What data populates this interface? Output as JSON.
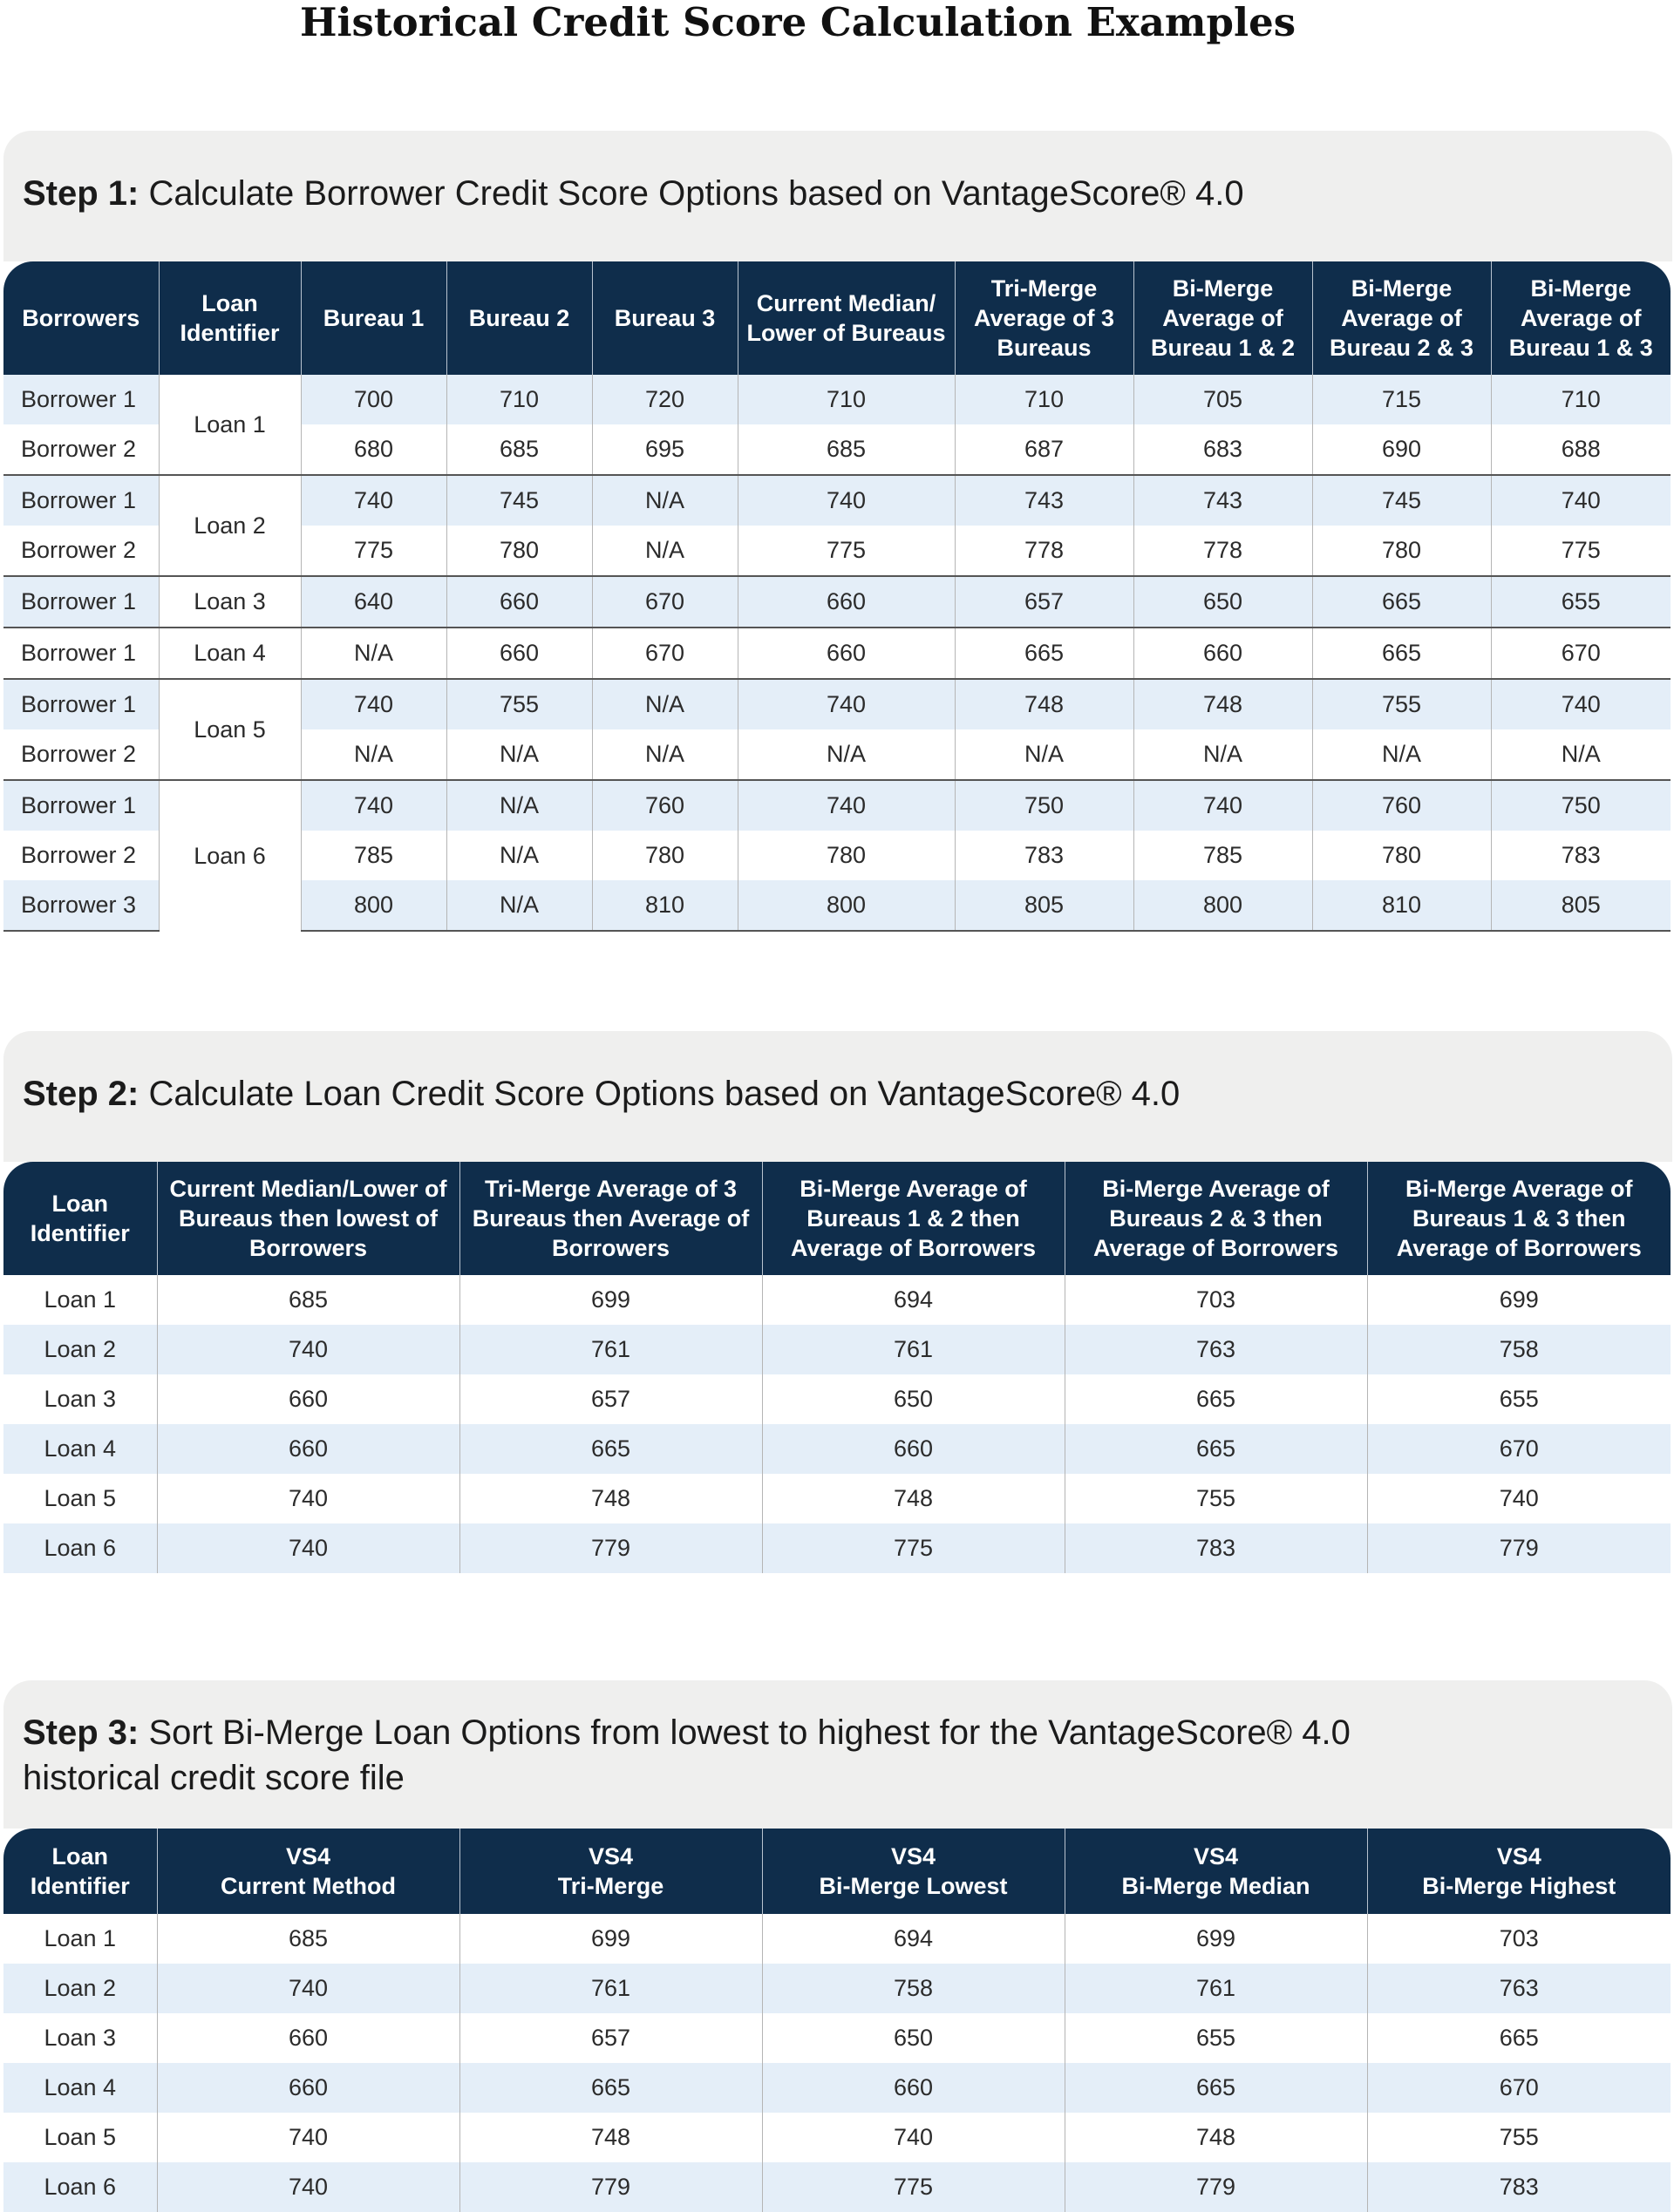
{
  "title": "Historical Credit Score Calculation Examples",
  "step1": {
    "label": "Step 1:",
    "text": "Calculate Borrower Credit Score Options based on VantageScore® 4.0",
    "headers": [
      "Borrowers",
      "Loan Identifier",
      "Bureau 1",
      "Bureau 2",
      "Bureau 3",
      "Current Median/ Lower of Bureaus",
      "Tri-Merge Average of 3 Bureaus",
      "Bi-Merge Average of Bureau 1 & 2",
      "Bi-Merge Average of Bureau 2 & 3",
      "Bi-Merge Average of Bureau 1 & 3"
    ],
    "groups": [
      {
        "loan": "Loan 1",
        "rows": [
          {
            "borrower": "Borrower 1",
            "values": [
              "700",
              "710",
              "720",
              "710",
              "710",
              "705",
              "715",
              "710"
            ]
          },
          {
            "borrower": "Borrower 2",
            "values": [
              "680",
              "685",
              "695",
              "685",
              "687",
              "683",
              "690",
              "688"
            ]
          }
        ]
      },
      {
        "loan": "Loan 2",
        "rows": [
          {
            "borrower": "Borrower 1",
            "values": [
              "740",
              "745",
              "N/A",
              "740",
              "743",
              "743",
              "745",
              "740"
            ]
          },
          {
            "borrower": "Borrower 2",
            "values": [
              "775",
              "780",
              "N/A",
              "775",
              "778",
              "778",
              "780",
              "775"
            ]
          }
        ]
      },
      {
        "loan": "Loan 3",
        "rows": [
          {
            "borrower": "Borrower 1",
            "values": [
              "640",
              "660",
              "670",
              "660",
              "657",
              "650",
              "665",
              "655"
            ]
          }
        ]
      },
      {
        "loan": "Loan 4",
        "rows": [
          {
            "borrower": "Borrower 1",
            "values": [
              "N/A",
              "660",
              "670",
              "660",
              "665",
              "660",
              "665",
              "670"
            ]
          }
        ]
      },
      {
        "loan": "Loan 5",
        "rows": [
          {
            "borrower": "Borrower 1",
            "values": [
              "740",
              "755",
              "N/A",
              "740",
              "748",
              "748",
              "755",
              "740"
            ]
          },
          {
            "borrower": "Borrower 2",
            "values": [
              "N/A",
              "N/A",
              "N/A",
              "N/A",
              "N/A",
              "N/A",
              "N/A",
              "N/A"
            ]
          }
        ]
      },
      {
        "loan": "Loan 6",
        "rows": [
          {
            "borrower": "Borrower 1",
            "values": [
              "740",
              "N/A",
              "760",
              "740",
              "750",
              "740",
              "760",
              "750"
            ]
          },
          {
            "borrower": "Borrower 2",
            "values": [
              "785",
              "N/A",
              "780",
              "780",
              "783",
              "785",
              "780",
              "783"
            ]
          },
          {
            "borrower": "Borrower 3",
            "values": [
              "800",
              "N/A",
              "810",
              "800",
              "805",
              "800",
              "810",
              "805"
            ]
          }
        ]
      }
    ]
  },
  "step2": {
    "label": "Step 2:",
    "text": "Calculate Loan Credit Score Options based on VantageScore® 4.0",
    "headers": [
      "Loan Identifier",
      "Current Median/Lower of Bureaus then lowest of Borrowers",
      "Tri-Merge Average of 3 Bureaus then Average of Borrowers",
      "Bi-Merge Average of Bureaus 1 & 2 then Average of Borrowers",
      "Bi-Merge Average of Bureaus 2 & 3 then Average of Borrowers",
      "Bi-Merge Average of Bureaus 1 & 3 then Average of Borrowers"
    ],
    "rows": [
      {
        "loan": "Loan 1",
        "values": [
          "685",
          "699",
          "694",
          "703",
          "699"
        ]
      },
      {
        "loan": "Loan 2",
        "values": [
          "740",
          "761",
          "761",
          "763",
          "758"
        ]
      },
      {
        "loan": "Loan 3",
        "values": [
          "660",
          "657",
          "650",
          "665",
          "655"
        ]
      },
      {
        "loan": "Loan 4",
        "values": [
          "660",
          "665",
          "660",
          "665",
          "670"
        ]
      },
      {
        "loan": "Loan 5",
        "values": [
          "740",
          "748",
          "748",
          "755",
          "740"
        ]
      },
      {
        "loan": "Loan 6",
        "values": [
          "740",
          "779",
          "775",
          "783",
          "779"
        ]
      }
    ]
  },
  "step3": {
    "label": "Step 3:",
    "text": "Sort Bi-Merge Loan Options from lowest to highest for the VantageScore® 4.0 historical credit score file",
    "headers": [
      [
        "Loan",
        "Identifier"
      ],
      [
        "VS4",
        "Current Method"
      ],
      [
        "VS4",
        "Tri-Merge"
      ],
      [
        "VS4",
        "Bi-Merge Lowest"
      ],
      [
        "VS4",
        "Bi-Merge Median"
      ],
      [
        "VS4",
        "Bi-Merge Highest"
      ]
    ],
    "rows": [
      {
        "loan": "Loan 1",
        "values": [
          "685",
          "699",
          "694",
          "699",
          "703"
        ]
      },
      {
        "loan": "Loan 2",
        "values": [
          "740",
          "761",
          "758",
          "761",
          "763"
        ]
      },
      {
        "loan": "Loan 3",
        "values": [
          "660",
          "657",
          "650",
          "655",
          "665"
        ]
      },
      {
        "loan": "Loan 4",
        "values": [
          "660",
          "665",
          "660",
          "665",
          "670"
        ]
      },
      {
        "loan": "Loan 5",
        "values": [
          "740",
          "748",
          "740",
          "748",
          "755"
        ]
      },
      {
        "loan": "Loan 6",
        "values": [
          "740",
          "779",
          "775",
          "779",
          "783"
        ]
      }
    ]
  }
}
